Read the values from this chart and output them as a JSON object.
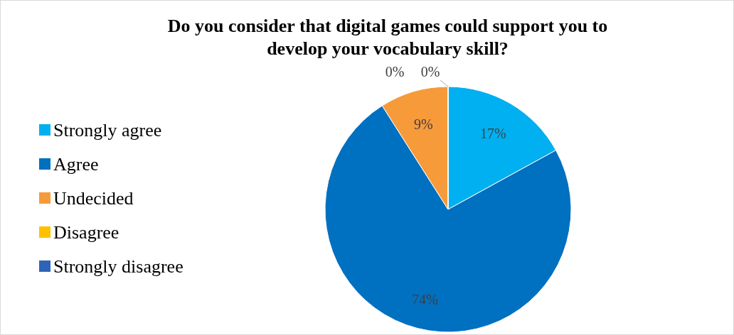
{
  "chart_data": {
    "type": "pie",
    "title": "Do you consider that digital games could support you to develop your vocabulary skill?",
    "categories": [
      "Strongly agree",
      "Agree",
      "Undecided",
      "Disagree",
      "Strongly disagree"
    ],
    "values": [
      17,
      74,
      9,
      0,
      0
    ],
    "colors": [
      "#00b0f0",
      "#0070c0",
      "#f79a3a",
      "#ffc000",
      "#2e64b8"
    ],
    "value_labels": [
      "17%",
      "74%",
      "9%",
      "0%",
      "0%"
    ],
    "legend": "left"
  }
}
